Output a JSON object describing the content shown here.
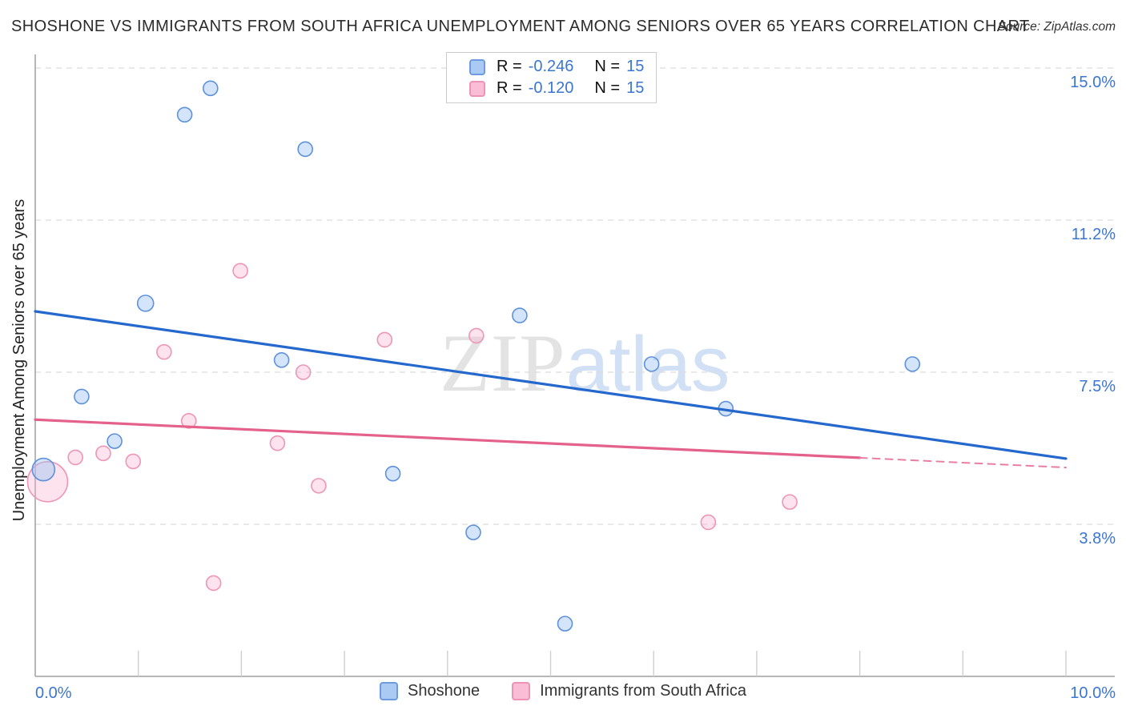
{
  "header": {
    "title": "SHOSHONE VS IMMIGRANTS FROM SOUTH AFRICA UNEMPLOYMENT AMONG SENIORS OVER 65 YEARS CORRELATION CHART",
    "source": "Source: ZipAtlas.com"
  },
  "watermark": {
    "zip": "ZIP",
    "atlas": "atlas"
  },
  "legend_box": {
    "rows": [
      {
        "series": "Shoshone",
        "r_label": "R =",
        "r_value": "-0.246",
        "n_label": "N =",
        "n_value": "15"
      },
      {
        "series": "Immigrants from South Africa",
        "r_label": "R =",
        "r_value": "-0.120",
        "n_label": "N =",
        "n_value": "15"
      }
    ]
  },
  "bottom_legend": [
    {
      "label": "Shoshone",
      "color": "blue"
    },
    {
      "label": "Immigrants from South Africa",
      "color": "pink"
    }
  ],
  "colors": {
    "blue_accent": "#3a76d2",
    "blue_line": "#2468ce",
    "blue_point_fill": "rgba(160,196,245,0.45)",
    "blue_point_stroke": "#5e92dc",
    "pink_line": "#e4618b",
    "pink_dashed": "#e87fa2",
    "pink_point_fill": "rgba(246,176,203,0.35)",
    "pink_point_stroke": "#ef95b5",
    "grid": "#dcdcdc",
    "axis": "#9f9f9f",
    "tick": "#cfcfcf"
  },
  "chart_data": {
    "type": "scatter",
    "title": "Shoshone vs Immigrants from South Africa Unemployment Among Seniors over 65 years",
    "ylabel": "Unemployment Among Seniors over 65 years",
    "xlim": [
      0,
      10
    ],
    "ylim": [
      0,
      15.35
    ],
    "grid": "dashed-horizontal",
    "x_axis_labels": [
      {
        "value": 0,
        "label": "0.0%"
      },
      {
        "value": 10,
        "label": "10.0%"
      }
    ],
    "y_axis_labels_right": [
      {
        "value": 15.0,
        "label": "15.0%"
      },
      {
        "value": 11.25,
        "label": "11.2%"
      },
      {
        "value": 7.5,
        "label": "7.5%"
      },
      {
        "value": 3.75,
        "label": "3.8%"
      }
    ],
    "x_minor_ticks": [
      1,
      2,
      3,
      4,
      5,
      6,
      7,
      8,
      9,
      10
    ],
    "series": [
      {
        "name": "Shoshone",
        "r": -0.246,
        "n": 15,
        "points": [
          {
            "x": 0.08,
            "y": 5.1,
            "size": 14
          },
          {
            "x": 0.45,
            "y": 6.9,
            "size": 9
          },
          {
            "x": 0.77,
            "y": 5.8,
            "size": 9
          },
          {
            "x": 1.07,
            "y": 9.2,
            "size": 10
          },
          {
            "x": 1.45,
            "y": 13.85,
            "size": 9
          },
          {
            "x": 1.7,
            "y": 14.5,
            "size": 9
          },
          {
            "x": 2.39,
            "y": 7.8,
            "size": 9
          },
          {
            "x": 2.62,
            "y": 13.0,
            "size": 9
          },
          {
            "x": 3.47,
            "y": 5.0,
            "size": 9
          },
          {
            "x": 4.25,
            "y": 3.55,
            "size": 9
          },
          {
            "x": 4.7,
            "y": 8.9,
            "size": 9
          },
          {
            "x": 5.14,
            "y": 1.3,
            "size": 9
          },
          {
            "x": 5.98,
            "y": 7.7,
            "size": 9
          },
          {
            "x": 6.7,
            "y": 6.6,
            "size": 9
          },
          {
            "x": 8.51,
            "y": 7.7,
            "size": 9
          }
        ]
      },
      {
        "name": "Immigrants from South Africa",
        "r": -0.12,
        "n": 15,
        "points": [
          {
            "x": 0.12,
            "y": 4.8,
            "size": 25
          },
          {
            "x": 0.39,
            "y": 5.4,
            "size": 9
          },
          {
            "x": 0.66,
            "y": 5.5,
            "size": 9
          },
          {
            "x": 0.95,
            "y": 5.3,
            "size": 9
          },
          {
            "x": 1.25,
            "y": 8.0,
            "size": 9
          },
          {
            "x": 1.49,
            "y": 6.3,
            "size": 9
          },
          {
            "x": 1.73,
            "y": 2.3,
            "size": 9
          },
          {
            "x": 1.99,
            "y": 10.0,
            "size": 9
          },
          {
            "x": 2.35,
            "y": 5.75,
            "size": 9
          },
          {
            "x": 2.6,
            "y": 7.5,
            "size": 9
          },
          {
            "x": 2.75,
            "y": 4.7,
            "size": 9
          },
          {
            "x": 3.39,
            "y": 8.3,
            "size": 9
          },
          {
            "x": 4.28,
            "y": 8.4,
            "size": 9
          },
          {
            "x": 6.53,
            "y": 3.8,
            "size": 9
          },
          {
            "x": 7.32,
            "y": 4.3,
            "size": 9
          }
        ]
      }
    ],
    "trendlines": [
      {
        "series": "Shoshone",
        "x1": 0,
        "y1": 9.0,
        "x2": 10,
        "y2": 5.37,
        "style": "solid"
      },
      {
        "series": "Immigrants from South Africa",
        "x1": 0,
        "y1": 6.33,
        "x2": 8.0,
        "y2": 5.39,
        "style": "solid"
      },
      {
        "series": "Immigrants from South Africa",
        "x1": 8.0,
        "y1": 5.39,
        "x2": 10,
        "y2": 5.15,
        "style": "dashed"
      }
    ]
  }
}
